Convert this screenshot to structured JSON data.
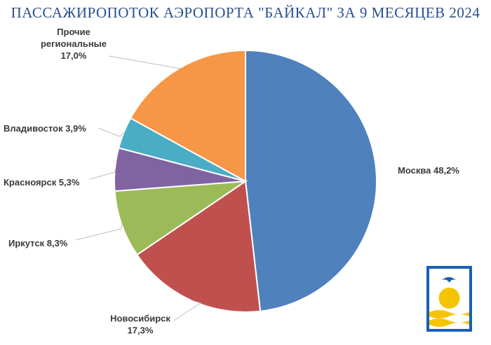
{
  "title": "ПАССАЖИРОПОТОК АЭРОПОРТА \"БАЙКАЛ\" ЗА 9 МЕСЯЦЕВ 2024",
  "chart_data": {
    "type": "pie",
    "title": "ПАССАЖИРОПОТОК АЭРОПОРТА \"БАЙКАЛ\" ЗА 9 МЕСЯЦЕВ 2024",
    "start_angle_deg": 0,
    "direction": "clockwise",
    "slices": [
      {
        "name": "Москва",
        "value": 48.2,
        "label_lines": [
          "Москва 48,2%"
        ],
        "color": "#4f81bd"
      },
      {
        "name": "Новосибирск",
        "value": 17.3,
        "label_lines": [
          "Новосибирск",
          "17,3%"
        ],
        "color": "#c0504d"
      },
      {
        "name": "Иркутск",
        "value": 8.3,
        "label_lines": [
          "Иркутск 8,3%"
        ],
        "color": "#9bbb59"
      },
      {
        "name": "Красноярск",
        "value": 5.3,
        "label_lines": [
          "Красноярск  5,3%"
        ],
        "color": "#8064a2"
      },
      {
        "name": "Владивосток",
        "value": 3.9,
        "label_lines": [
          "Владивосток 3,9%"
        ],
        "color": "#4bacc6"
      },
      {
        "name": "Прочие региональные",
        "value": 17.0,
        "label_lines": [
          "Прочие",
          "региональные",
          "17,0%"
        ],
        "color": "#f79646"
      }
    ]
  },
  "logo": {
    "type": "emblem",
    "colors": {
      "sky": "#1a5fb4",
      "sun": "#f5c400",
      "water": "#f5c400",
      "bird": "#ffffff"
    }
  }
}
